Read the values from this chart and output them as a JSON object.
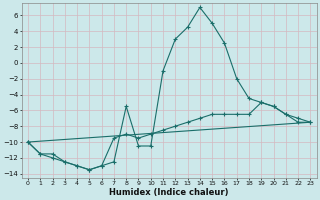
{
  "xlabel": "Humidex (Indice chaleur)",
  "background_color": "#cce8ea",
  "grid_color": "#b0d0d8",
  "line_color": "#1a6e6a",
  "xlim": [
    -0.5,
    23.5
  ],
  "ylim": [
    -14.5,
    7.5
  ],
  "yticks": [
    -14,
    -12,
    -10,
    -8,
    -6,
    -4,
    -2,
    0,
    2,
    4,
    6
  ],
  "xticks": [
    0,
    1,
    2,
    3,
    4,
    5,
    6,
    7,
    8,
    9,
    10,
    11,
    12,
    13,
    14,
    15,
    16,
    17,
    18,
    19,
    20,
    21,
    22,
    23
  ],
  "series1": [
    [
      0,
      -10.0
    ],
    [
      1,
      -11.5
    ],
    [
      2,
      -12.0
    ],
    [
      3,
      -12.5
    ],
    [
      4,
      -13.0
    ],
    [
      5,
      -13.5
    ],
    [
      6,
      -13.0
    ],
    [
      7,
      -12.5
    ],
    [
      8,
      -5.5
    ],
    [
      9,
      -10.5
    ],
    [
      10,
      -10.5
    ],
    [
      11,
      -1.0
    ],
    [
      12,
      3.0
    ],
    [
      13,
      4.5
    ],
    [
      14,
      7.0
    ],
    [
      15,
      5.0
    ],
    [
      16,
      2.5
    ],
    [
      17,
      -2.0
    ],
    [
      18,
      -4.5
    ],
    [
      19,
      -5.0
    ],
    [
      20,
      -5.5
    ],
    [
      21,
      -6.5
    ],
    [
      22,
      -7.5
    ],
    [
      23,
      -7.5
    ]
  ],
  "series2": [
    [
      0,
      -10.0
    ],
    [
      1,
      -11.5
    ],
    [
      2,
      -11.5
    ],
    [
      3,
      -12.5
    ],
    [
      4,
      -13.0
    ],
    [
      5,
      -13.5
    ],
    [
      6,
      -13.0
    ],
    [
      7,
      -9.5
    ],
    [
      8,
      -9.0
    ],
    [
      9,
      -9.5
    ],
    [
      10,
      -9.0
    ],
    [
      11,
      -8.5
    ],
    [
      12,
      -8.0
    ],
    [
      13,
      -7.5
    ],
    [
      14,
      -7.0
    ],
    [
      15,
      -6.5
    ],
    [
      16,
      -6.5
    ],
    [
      17,
      -6.5
    ],
    [
      18,
      -6.5
    ],
    [
      19,
      -5.0
    ],
    [
      20,
      -5.5
    ],
    [
      21,
      -6.5
    ],
    [
      22,
      -7.0
    ],
    [
      23,
      -7.5
    ]
  ],
  "series3": [
    [
      0,
      -10.0
    ],
    [
      23,
      -7.5
    ]
  ]
}
